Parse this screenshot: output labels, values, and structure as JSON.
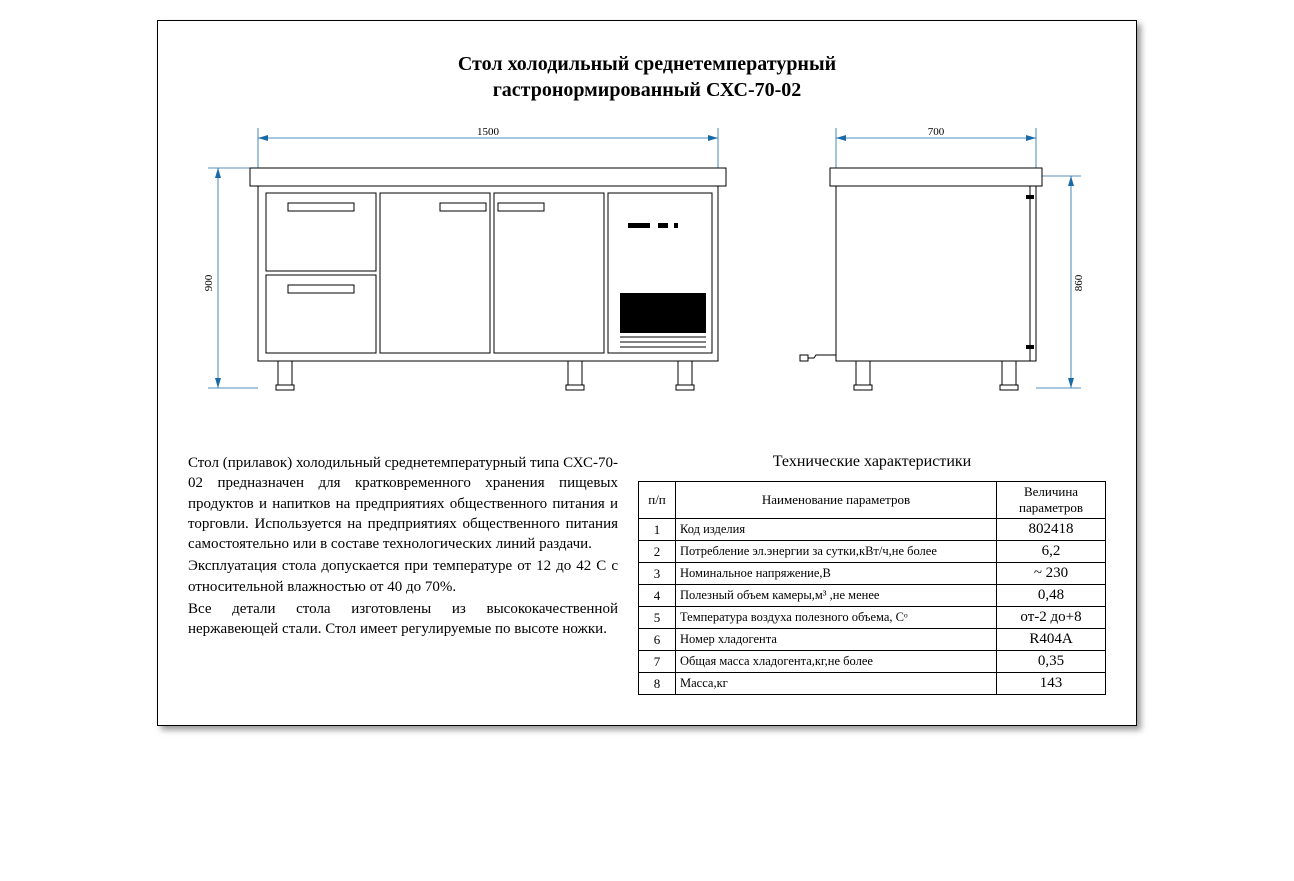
{
  "title_line1": "Стол холодильный среднетемпературный",
  "title_line2": "гастронормированный СХС-70-02",
  "dim_front_width": "1500",
  "dim_height": "900",
  "dim_side_width": "700",
  "dim_side_height": "860",
  "description": {
    "p1": "Стол (прилавок) холодильный среднетемпературный типа СХС-70-02 предназначен для кратковременного хранения пищевых продуктов и напитков на предприятиях общественного питания и торговли. Используется на предприятиях общественного питания самостоятельно или в составе технологических линий раздачи.",
    "p2": "Эксплуатация стола допускается при температуре от 12 до 42 С с относительной влажностью от 40 до 70%.",
    "p3": "Все детали стола изготовлены из высококачественной нержавеющей стали. Стол имеет регулируемые по высоте ножки."
  },
  "specs_title": "Технические характеристики",
  "spec_headers": {
    "col1": "п/п",
    "col2": "Наименование параметров",
    "col3": "Величина параметров"
  },
  "spec_rows": [
    {
      "n": "1",
      "name": "Код изделия",
      "value": "802418"
    },
    {
      "n": "2",
      "name": "Потребление эл.энергии за сутки,кВт/ч,не более",
      "value": "6,2"
    },
    {
      "n": "3",
      "name": "Номинальное напряжение,В",
      "value": "~ 230"
    },
    {
      "n": "4",
      "name": "Полезный объем камеры,м³ ,не менее",
      "value": "0,48"
    },
    {
      "n": "5",
      "name": "Температура воздуха полезного объема, Сᵒ",
      "value": "от-2 до+8"
    },
    {
      "n": "6",
      "name": "Номер хладогента",
      "value": "R404A"
    },
    {
      "n": "7",
      "name": "Общая масса хладогента,кг,не более",
      "value": "0,35"
    },
    {
      "n": "8",
      "name": "Масса,кг",
      "value": "143"
    }
  ],
  "styling": {
    "stroke_thin": "#1a6aa8",
    "stroke_body": "#000000",
    "fill_black": "#000000",
    "fill_white": "#ffffff",
    "dim_font_size": 11,
    "body_font": "Times New Roman"
  }
}
